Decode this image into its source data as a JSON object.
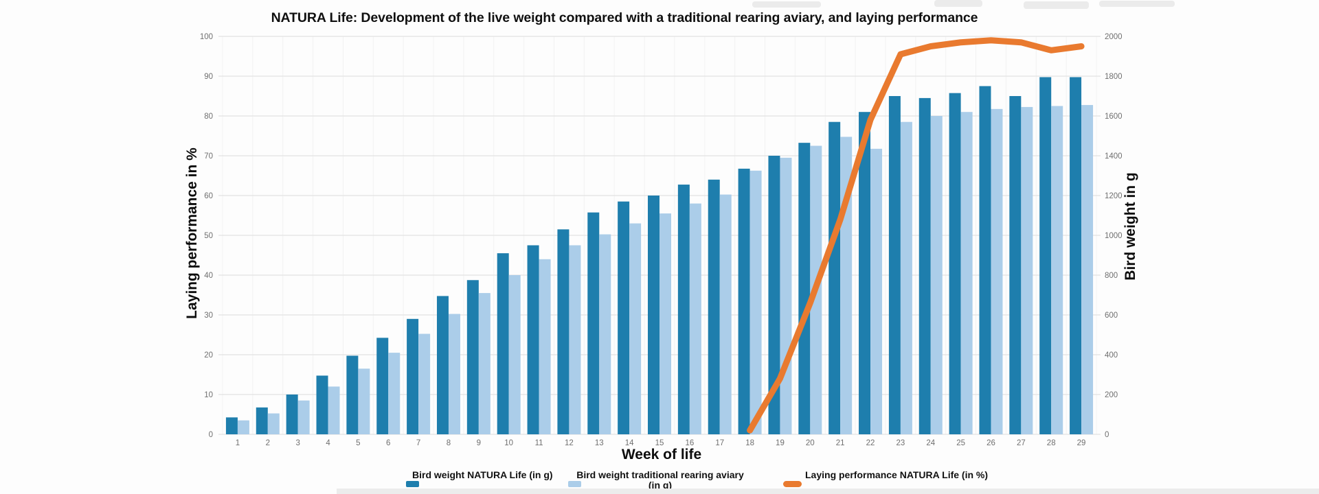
{
  "title": "NATURA Life: Development of the live weight compared with a traditional rearing aviary, and laying performance",
  "axes": {
    "left": {
      "title": "Laying performance in %",
      "ticks": [
        0,
        10,
        20,
        30,
        40,
        50,
        60,
        70,
        80,
        90,
        100
      ],
      "range": [
        0,
        100
      ]
    },
    "right": {
      "title": "Bird weight in g",
      "ticks": [
        0,
        200,
        400,
        600,
        800,
        1000,
        1200,
        1400,
        1600,
        1800,
        2000
      ],
      "range": [
        0,
        2000
      ]
    },
    "x": {
      "title": "Week of life"
    }
  },
  "legend": [
    {
      "label": "Bird weight NATURA Life (in g)",
      "color": "#1e7ead",
      "type": "bar"
    },
    {
      "label_line1": "Bird weight traditional rearing aviary",
      "label_line2": "(in g)",
      "color": "#abcde9",
      "type": "bar"
    },
    {
      "label": "Laying performance NATURA Life (in %)",
      "color": "#e97a2f",
      "type": "line"
    }
  ],
  "colors": {
    "natura_bar": "#1e7ead",
    "traditional_bar": "#abcde9",
    "laying_line": "#e97a2f",
    "gridline": "#e3e3e3",
    "v_gridline": "#f2f2f2",
    "tick_text": "#6f6f6f"
  },
  "chart_data": {
    "type": "bar",
    "note": "grouped bars on right axis (g) plus line series on left axis (%)",
    "categories": [
      1,
      2,
      3,
      4,
      5,
      6,
      7,
      8,
      9,
      10,
      11,
      12,
      13,
      14,
      15,
      16,
      17,
      18,
      19,
      20,
      21,
      22,
      23,
      24,
      25,
      26,
      27,
      28,
      29
    ],
    "xlabel": "Week of life",
    "left_ylabel": "Laying performance in %",
    "right_ylabel": "Bird weight in g",
    "left_ylim": [
      0,
      100
    ],
    "right_ylim": [
      0,
      2000
    ],
    "grid": true,
    "legend_position": "bottom",
    "series": [
      {
        "name": "Bird weight NATURA Life (in g)",
        "type": "bar",
        "axis": "right",
        "color": "#1e7ead",
        "values": [
          85,
          135,
          200,
          295,
          395,
          485,
          580,
          695,
          775,
          910,
          950,
          1030,
          1115,
          1170,
          1200,
          1255,
          1280,
          1335,
          1400,
          1465,
          1570,
          1620,
          1700,
          1690,
          1715,
          1750,
          1700,
          1795,
          1795
        ]
      },
      {
        "name": "Bird weight traditional rearing aviary (in g)",
        "type": "bar",
        "axis": "right",
        "color": "#abcde9",
        "values": [
          70,
          105,
          170,
          240,
          330,
          410,
          505,
          605,
          710,
          800,
          880,
          950,
          1005,
          1060,
          1110,
          1160,
          1205,
          1325,
          1390,
          1450,
          1495,
          1435,
          1570,
          1600,
          1620,
          1635,
          1645,
          1650,
          1655
        ]
      },
      {
        "name": "Laying performance NATURA Life (in %)",
        "type": "line",
        "axis": "left",
        "color": "#e97a2f",
        "values": [
          null,
          null,
          null,
          null,
          null,
          null,
          null,
          null,
          null,
          null,
          null,
          null,
          null,
          null,
          null,
          null,
          null,
          1,
          14,
          33,
          54,
          79,
          95.5,
          97.5,
          98.5,
          99,
          98.5,
          96.5,
          97.5
        ]
      }
    ]
  }
}
